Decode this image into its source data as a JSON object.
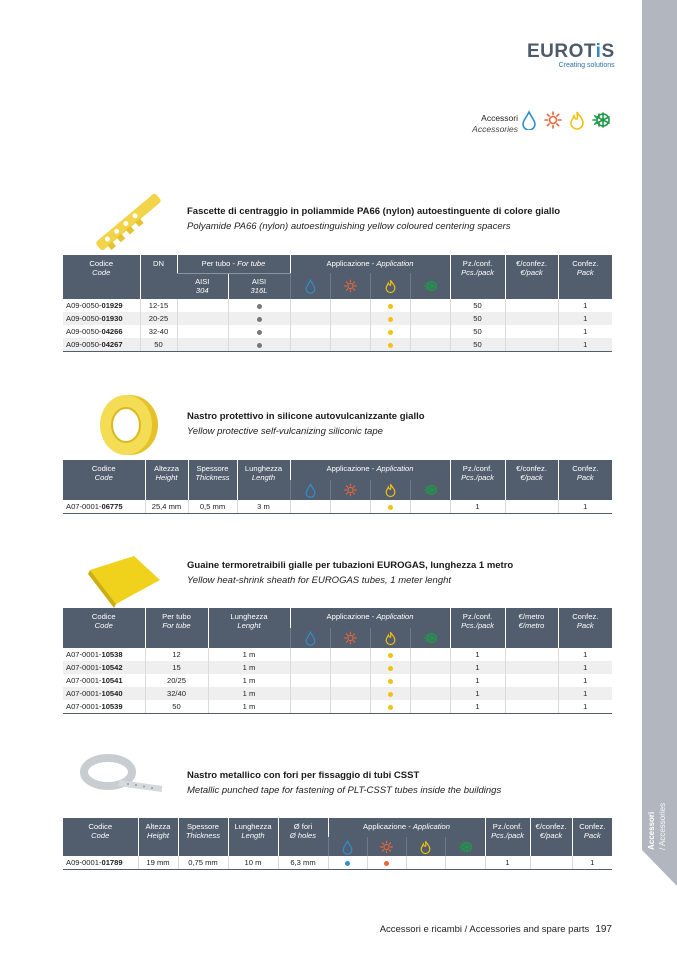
{
  "brand": {
    "name_a": "EUROT",
    "name_b": "i",
    "name_c": "S",
    "tagline": "Creating solutions"
  },
  "category": {
    "it": "Accessori",
    "en": "Accessories"
  },
  "side_tab": {
    "it": "Accessori",
    "en": "/ Accessories"
  },
  "footer": {
    "text": "Accessori e ricambi / Accessories and spare parts",
    "page": "197"
  },
  "application_icons": [
    {
      "name": "water-drop-icon",
      "color": "#2e8fd0"
    },
    {
      "name": "sun-icon",
      "color": "#e8663a"
    },
    {
      "name": "flame-icon",
      "color": "#f2c20f"
    },
    {
      "name": "snowflake-sun-icon",
      "color": "#1e9a4a"
    }
  ],
  "grey_dot_color": "#777777",
  "products": [
    {
      "title_it": "Fascette di centraggio in poliammide PA66 (nylon) autoestinguente di colore giallo",
      "title_en": "Polyamide PA66 (nylon) autoestinguishing yellow coloured centering spacers",
      "columns_before": [
        {
          "it": "Codice",
          "en": "Code"
        },
        {
          "it": "DN",
          "en": ""
        }
      ],
      "group": {
        "it": "Per tubo - ",
        "en": "For tube",
        "subs": [
          {
            "it": "AISI",
            "en": "304"
          },
          {
            "it": "AISI",
            "en": "316L"
          }
        ]
      },
      "app_label": {
        "it": "Applicazione - ",
        "en": "Application"
      },
      "columns_after": [
        {
          "it": "Pz./conf.",
          "en": "Pcs./pack"
        },
        {
          "it": "€/confez.",
          "en": "€/pack"
        },
        {
          "it": "Confez.",
          "en": "Pack"
        }
      ],
      "rows": [
        {
          "code": "A09-0050-",
          "code_bold": "01929",
          "before": [
            "12-15"
          ],
          "group": [
            "",
            "●"
          ],
          "app": [
            false,
            false,
            true,
            false
          ],
          "after": [
            "50",
            "",
            "1"
          ]
        },
        {
          "code": "A09-0050-",
          "code_bold": "01930",
          "before": [
            "20-25"
          ],
          "group": [
            "",
            "●"
          ],
          "app": [
            false,
            false,
            true,
            false
          ],
          "after": [
            "50",
            "",
            "1"
          ]
        },
        {
          "code": "A09-0050-",
          "code_bold": "04266",
          "before": [
            "32-40"
          ],
          "group": [
            "",
            "●"
          ],
          "app": [
            false,
            false,
            true,
            false
          ],
          "after": [
            "50",
            "",
            "1"
          ]
        },
        {
          "code": "A09-0050-",
          "code_bold": "04267",
          "before": [
            "50"
          ],
          "group": [
            "",
            "●"
          ],
          "app": [
            false,
            false,
            true,
            false
          ],
          "after": [
            "50",
            "",
            "1"
          ]
        }
      ]
    },
    {
      "title_it": "Nastro protettivo in silicone autovulcanizzante giallo",
      "title_en": "Yellow protective self-vulcanizing siliconic tape",
      "columns_before": [
        {
          "it": "Codice",
          "en": "Code"
        },
        {
          "it": "Altezza",
          "en": "Height"
        },
        {
          "it": "Spessore",
          "en": "Thickness"
        },
        {
          "it": "Lunghezza",
          "en": "Length"
        }
      ],
      "app_label": {
        "it": "Applicazione - ",
        "en": "Application"
      },
      "columns_after": [
        {
          "it": "Pz./conf.",
          "en": "Pcs./pack"
        },
        {
          "it": "€/confez.",
          "en": "€/pack"
        },
        {
          "it": "Confez.",
          "en": "Pack"
        }
      ],
      "rows": [
        {
          "code": "A07-0001-",
          "code_bold": "06775",
          "before": [
            "25,4 mm",
            "0,5 mm",
            "3 m"
          ],
          "app": [
            false,
            false,
            true,
            false
          ],
          "after": [
            "1",
            "",
            "1"
          ]
        }
      ]
    },
    {
      "title_it": "Guaine termoretraibili gialle per tubazioni EUROGAS, lunghezza 1 metro",
      "title_en": "Yellow heat-shrink sheath for EUROGAS tubes, 1 meter lenght",
      "columns_before": [
        {
          "it": "Codice",
          "en": "Code"
        },
        {
          "it": "Per tubo",
          "en": "For tube"
        },
        {
          "it": "Lunghezza",
          "en": "Lenght"
        }
      ],
      "app_label": {
        "it": "Applicazione - ",
        "en": "Application"
      },
      "columns_after": [
        {
          "it": "Pz./conf.",
          "en": "Pcs./pack"
        },
        {
          "it": "€/metro",
          "en": "€/metro"
        },
        {
          "it": "Confez.",
          "en": "Pack"
        }
      ],
      "rows": [
        {
          "code": "A07-0001-",
          "code_bold": "10538",
          "before": [
            "12",
            "1 m"
          ],
          "app": [
            false,
            false,
            true,
            false
          ],
          "after": [
            "1",
            "",
            "1"
          ]
        },
        {
          "code": "A07-0001-",
          "code_bold": "10542",
          "before": [
            "15",
            "1 m"
          ],
          "app": [
            false,
            false,
            true,
            false
          ],
          "after": [
            "1",
            "",
            "1"
          ]
        },
        {
          "code": "A07-0001-",
          "code_bold": "10541",
          "before": [
            "20/25",
            "1 m"
          ],
          "app": [
            false,
            false,
            true,
            false
          ],
          "after": [
            "1",
            "",
            "1"
          ]
        },
        {
          "code": "A07-0001-",
          "code_bold": "10540",
          "before": [
            "32/40",
            "1 m"
          ],
          "app": [
            false,
            false,
            true,
            false
          ],
          "after": [
            "1",
            "",
            "1"
          ]
        },
        {
          "code": "A07-0001-",
          "code_bold": "10539",
          "before": [
            "50",
            "1 m"
          ],
          "app": [
            false,
            false,
            true,
            false
          ],
          "after": [
            "1",
            "",
            "1"
          ]
        }
      ]
    },
    {
      "title_it": "Nastro metallico con fori per fissaggio di tubi CSST",
      "title_en": "Metallic punched tape for fastening of PLT-CSST tubes inside the buildings",
      "columns_before": [
        {
          "it": "Codice",
          "en": "Code"
        },
        {
          "it": "Altezza",
          "en": "Height"
        },
        {
          "it": "Spessore",
          "en": "Thickness"
        },
        {
          "it": "Lunghezza",
          "en": "Length"
        },
        {
          "it": "Ø fori",
          "en": "Ø holes"
        }
      ],
      "app_label": {
        "it": "Applicazione - ",
        "en": "Application"
      },
      "columns_after": [
        {
          "it": "Pz./conf.",
          "en": "Pcs./pack"
        },
        {
          "it": "€/confez.",
          "en": "€/pack"
        },
        {
          "it": "Confez.",
          "en": "Pack"
        }
      ],
      "rows": [
        {
          "code": "A09-0001-",
          "code_bold": "01789",
          "before": [
            "19 mm",
            "0,75 mm",
            "10 m",
            "6,3 mm"
          ],
          "app": [
            true,
            true,
            false,
            false
          ],
          "after": [
            "1",
            "",
            "1"
          ]
        }
      ]
    }
  ]
}
